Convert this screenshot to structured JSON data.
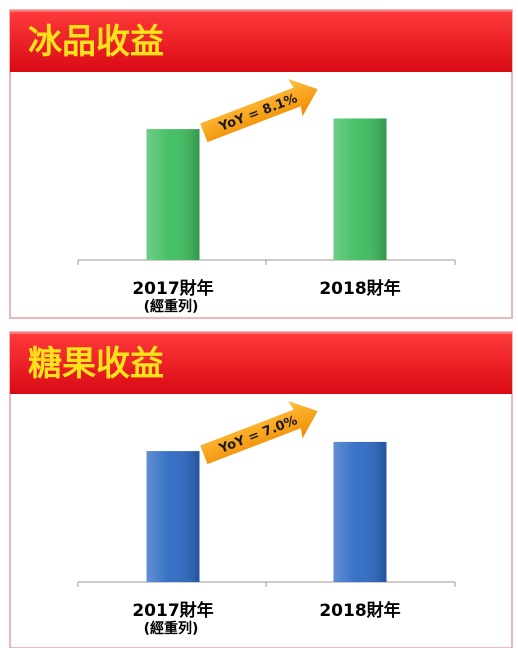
{
  "chart_data": [
    {
      "type": "bar",
      "title": "冰品收益",
      "categories": [
        "2017財年",
        "2018財年"
      ],
      "category_notes": [
        "(經重列)",
        null
      ],
      "values": [
        100,
        108.1
      ],
      "color": "#3dbd5e",
      "ylim": [
        0,
        110
      ],
      "annotation": "YoY = 8.1%"
    },
    {
      "type": "bar",
      "title": "糖果收益",
      "categories": [
        "2017財年",
        "2018財年"
      ],
      "category_notes": [
        "(經重列)",
        null
      ],
      "values": [
        100,
        107.0
      ],
      "color": "#2c69c3",
      "ylim": [
        0,
        110
      ],
      "annotation": "YoY = 7.0%"
    }
  ]
}
